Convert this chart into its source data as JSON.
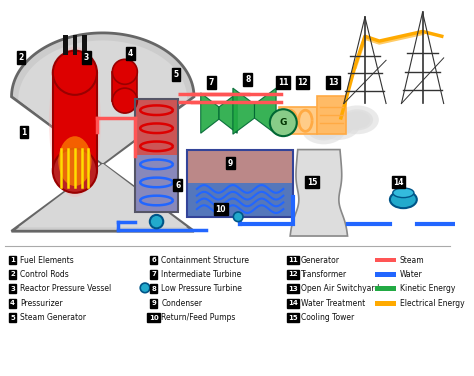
{
  "bg_color": "#ffffff",
  "legend_col1": [
    [
      1,
      "Fuel Elements"
    ],
    [
      2,
      "Control Rods"
    ],
    [
      3,
      "Reactor Pressure Vessel"
    ],
    [
      4,
      "Pressurizer"
    ],
    [
      5,
      "Steam Generator"
    ]
  ],
  "legend_col2": [
    [
      6,
      "Containment Structure"
    ],
    [
      7,
      "Intermediate Turbine"
    ],
    [
      8,
      "Low Pressure Turbine"
    ],
    [
      9,
      "Condenser"
    ],
    [
      10,
      "Return/Feed Pumps"
    ]
  ],
  "legend_col3": [
    [
      11,
      "Generator"
    ],
    [
      12,
      "Transformer"
    ],
    [
      13,
      "Open Air Switchyard"
    ],
    [
      14,
      "Water Treatment"
    ],
    [
      15,
      "Cooling Tower"
    ]
  ],
  "energy_legend": [
    {
      "label": "Steam",
      "color": "#ff5555"
    },
    {
      "label": "Water",
      "color": "#2266ff"
    },
    {
      "label": "Kinetic Energy",
      "color": "#22aa44"
    },
    {
      "label": "Electrical Energy",
      "color": "#ffaa00"
    }
  ],
  "steam_color": "#ff5555",
  "water_color": "#2266ff",
  "kinetic_color": "#22aa44",
  "elec_color": "#ffaa00",
  "gray_light": "#cccccc",
  "gray_dark": "#888888",
  "red_bright": "#dd0000",
  "red_dark": "#990000",
  "purple_light": "#9999cc",
  "blue_cond": "#6688bb",
  "teal": "#22aacc",
  "orange_trans": "#ffaa44",
  "green_turb": "#44cc77"
}
